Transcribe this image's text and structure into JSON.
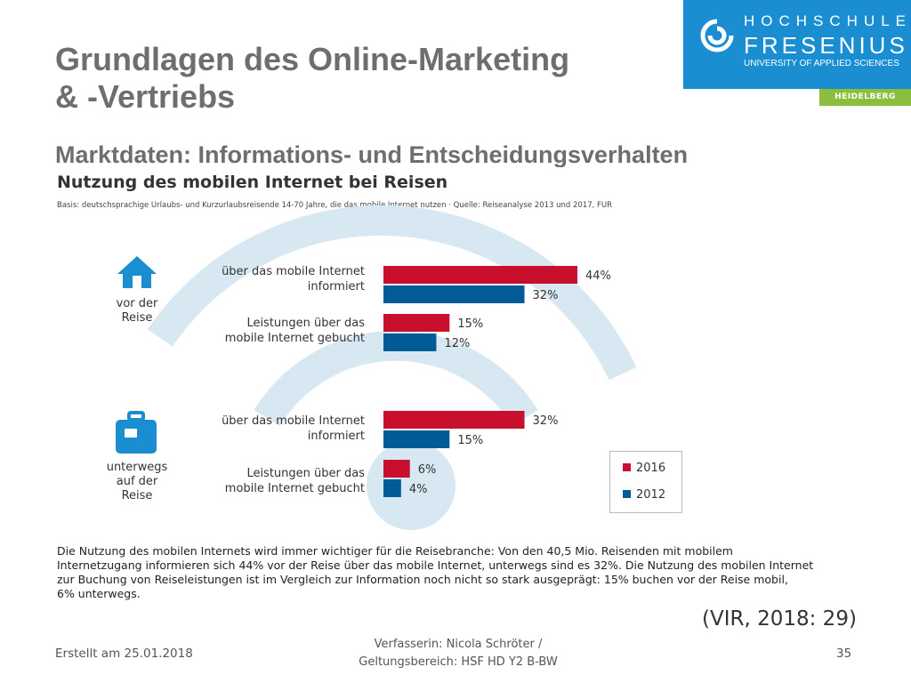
{
  "slide": {
    "title_line1": "Grundlagen des Online-Marketing",
    "title_line2": "& -Vertriebs",
    "subtitle": "Marktdaten: Informations- und Entscheidungsverhalten"
  },
  "logo": {
    "line1": "HOCHSCHULE",
    "line2": "FRESENIUS",
    "line3": "UNIVERSITY OF APPLIED SCIENCES",
    "badge": "HEIDELBERG",
    "icon": "fresenius-logo-mark"
  },
  "chart_data": {
    "type": "bar",
    "orientation": "horizontal",
    "title": "Nutzung des mobilen Internet bei Reisen",
    "basis": "Basis: deutschsprachige Urlaubs- und Kurzurlaubsreisende 14-70 Jahre, die das mobile Internet nutzen · Quelle: Reiseanalyse 2013 und 2017, FUR",
    "groups": [
      {
        "label": "vor der Reise",
        "icon": "house-icon"
      },
      {
        "label": "unterwegs auf der Reise",
        "icon": "suitcase-icon"
      }
    ],
    "categories": [
      "über das mobile Internet informiert",
      "Leistungen über das mobile Internet gebucht",
      "über das mobile Internet informiert",
      "Leistungen über das mobile Internet gebucht"
    ],
    "series": [
      {
        "name": "2016",
        "color": "#c8102e",
        "values": [
          44,
          15,
          32,
          6
        ]
      },
      {
        "name": "2012",
        "color": "#005b96",
        "values": [
          32,
          12,
          15,
          4
        ]
      }
    ],
    "value_suffix": "%",
    "legend_position": "bottom-right",
    "background_motif": "wifi-signal-arcs",
    "motif_color": "#d7e8f3"
  },
  "summary_lines": [
    "Die Nutzung des mobilen Internets wird immer wichtiger für die Reisebranche: Von den 40,5 Mio. Reisenden mit mobilem",
    "Internetzugang informieren sich 44% vor der Reise über das mobile Internet, unterwegs sind es 32%. Die Nutzung des mobilen Internet",
    "zur Buchung von Reiseleistungen ist im Vergleich zur Information noch nicht so stark ausgeprägt: 15% buchen vor der Reise mobil,",
    "6% unterwegs."
  ],
  "source_ref": "(VIR, 2018: 29)",
  "footer": {
    "left": "Erstellt am 25.01.2018",
    "center_line1": "Verfasserin: Nicola Schröter /",
    "center_line2": "Geltungsbereich:  HSF HD Y2 B-BW",
    "right": "35"
  }
}
